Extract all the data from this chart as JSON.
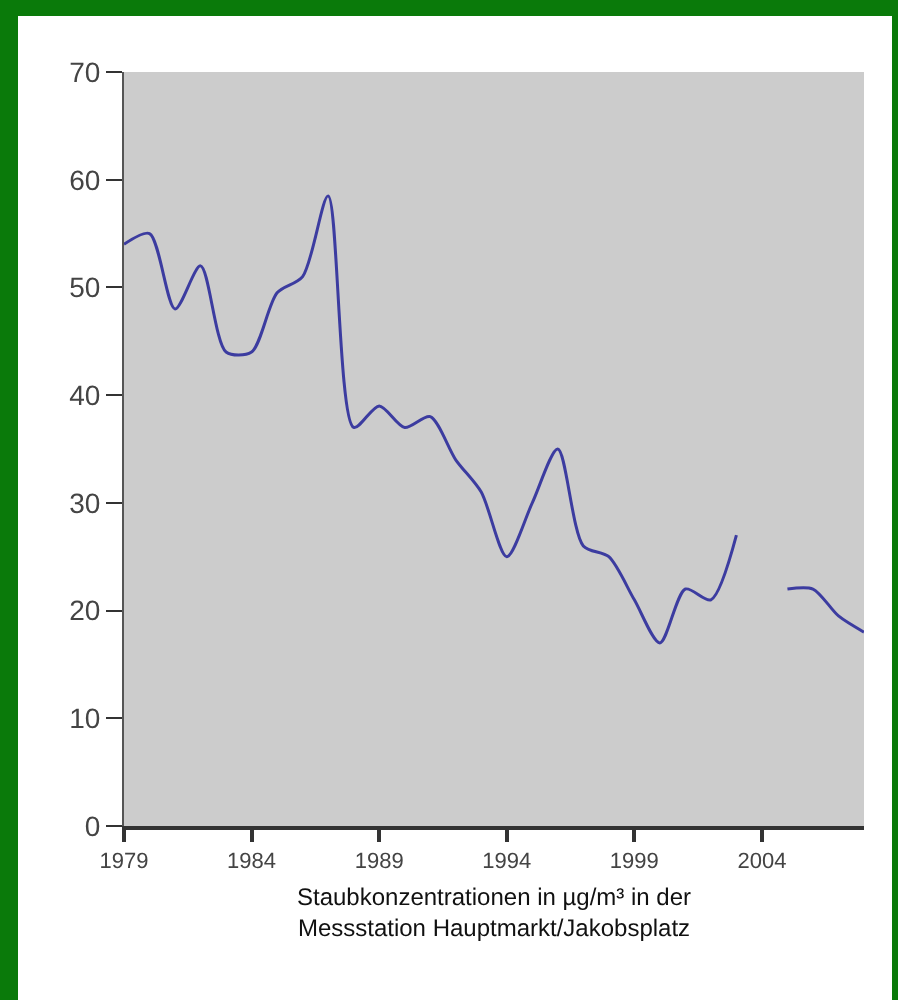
{
  "chart_data": {
    "type": "line",
    "xlabel": "Staubkonzentrationen in µg/m³ in der\nMessstation Hauptmarkt/Jakobsplatz",
    "x": [
      1979,
      1980,
      1981,
      1982,
      1983,
      1984,
      1985,
      1986,
      1987,
      1988,
      1989,
      1990,
      1991,
      1992,
      1993,
      1994,
      1995,
      1996,
      1997,
      1998,
      1999,
      2000,
      2001,
      2002,
      2003,
      2004,
      2005,
      2006,
      2007,
      2008
    ],
    "series": [
      {
        "color": "#3c3ca0",
        "values": [
          54,
          55,
          48,
          52,
          44,
          44,
          49.5,
          51,
          58.5,
          37,
          39,
          37,
          38,
          34,
          31,
          25,
          30,
          35,
          26,
          25,
          21,
          17,
          22,
          21,
          27,
          null,
          22,
          22,
          19.5,
          18
        ]
      }
    ],
    "xlim": [
      1979,
      2008
    ],
    "xticks": [
      1979,
      1984,
      1989,
      1994,
      1999,
      2004
    ],
    "ylim": [
      0,
      70
    ],
    "yticks": [
      0,
      10,
      20,
      30,
      40,
      50,
      60,
      70
    ],
    "grid": false,
    "marker": "none",
    "line_style": "solid"
  }
}
